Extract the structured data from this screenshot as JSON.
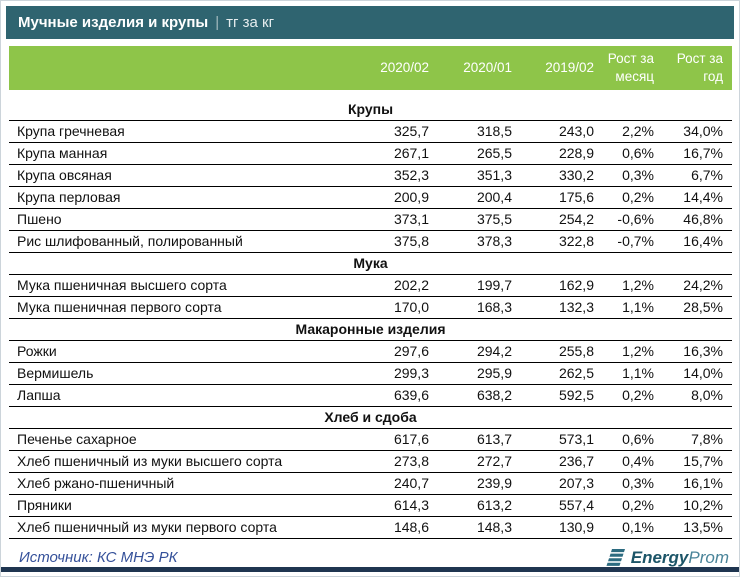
{
  "title_bar": {
    "title": "Мучные изделия и крупы",
    "separator": "|",
    "units": "тг за кг"
  },
  "chart_data": {
    "type": "table",
    "title": "Мучные изделия и крупы",
    "units": "тг за кг",
    "columns": [
      "2020/02",
      "2020/01",
      "2019/02",
      "Рост за месяц",
      "Рост за год"
    ],
    "sections": [
      {
        "title": "Крупы",
        "rows": [
          {
            "name": "Крупа гречневая",
            "values": [
              "325,7",
              "318,5",
              "243,0",
              "2,2%",
              "34,0%"
            ]
          },
          {
            "name": "Крупа манная",
            "values": [
              "267,1",
              "265,5",
              "228,9",
              "0,6%",
              "16,7%"
            ]
          },
          {
            "name": "Крупа овсяная",
            "values": [
              "352,3",
              "351,3",
              "330,2",
              "0,3%",
              "6,7%"
            ]
          },
          {
            "name": "Крупа перловая",
            "values": [
              "200,9",
              "200,4",
              "175,6",
              "0,2%",
              "14,4%"
            ]
          },
          {
            "name": "Пшено",
            "values": [
              "373,1",
              "375,5",
              "254,2",
              "-0,6%",
              "46,8%"
            ]
          },
          {
            "name": "Рис шлифованный, полированный",
            "values": [
              "375,8",
              "378,3",
              "322,8",
              "-0,7%",
              "16,4%"
            ]
          }
        ]
      },
      {
        "title": "Мука",
        "rows": [
          {
            "name": "Мука пшеничная высшего сорта",
            "values": [
              "202,2",
              "199,7",
              "162,9",
              "1,2%",
              "24,2%"
            ]
          },
          {
            "name": "Мука пшеничная первого сорта",
            "values": [
              "170,0",
              "168,3",
              "132,3",
              "1,1%",
              "28,5%"
            ]
          }
        ]
      },
      {
        "title": "Макаронные изделия",
        "rows": [
          {
            "name": "Рожки",
            "values": [
              "297,6",
              "294,2",
              "255,8",
              "1,2%",
              "16,3%"
            ]
          },
          {
            "name": "Вермишель",
            "values": [
              "299,3",
              "295,9",
              "262,5",
              "1,1%",
              "14,0%"
            ]
          },
          {
            "name": "Лапша",
            "values": [
              "639,6",
              "638,2",
              "592,5",
              "0,2%",
              "8,0%"
            ]
          }
        ]
      },
      {
        "title": "Хлеб и сдоба",
        "rows": [
          {
            "name": "Печенье сахарное",
            "values": [
              "617,6",
              "613,7",
              "573,1",
              "0,6%",
              "7,8%"
            ]
          },
          {
            "name": "Хлеб пшеничный из муки высшего сорта",
            "values": [
              "273,8",
              "272,7",
              "236,7",
              "0,4%",
              "15,7%"
            ]
          },
          {
            "name": "Хлеб ржано-пшеничный",
            "values": [
              "240,7",
              "239,9",
              "207,3",
              "0,3%",
              "16,1%"
            ]
          },
          {
            "name": "Пряники",
            "values": [
              "614,3",
              "613,2",
              "557,4",
              "0,2%",
              "10,2%"
            ]
          },
          {
            "name": "Хлеб пшеничный из муки первого сорта",
            "values": [
              "148,6",
              "148,3",
              "130,9",
              "0,1%",
              "13,5%"
            ]
          }
        ]
      }
    ]
  },
  "footer": {
    "source": "Источник: КС МНЭ РК",
    "logo_bold": "Energy",
    "logo_light": "Prom"
  },
  "colors": {
    "title_bar_teal": "#2F6470",
    "header_green": "#8EC549",
    "row_border": "#000000",
    "source_text": "#35519A",
    "logo_dark_teal": "#1C5568",
    "logo_light_teal": "#4A8499",
    "bottom_bar_navy": "#1F3550"
  }
}
